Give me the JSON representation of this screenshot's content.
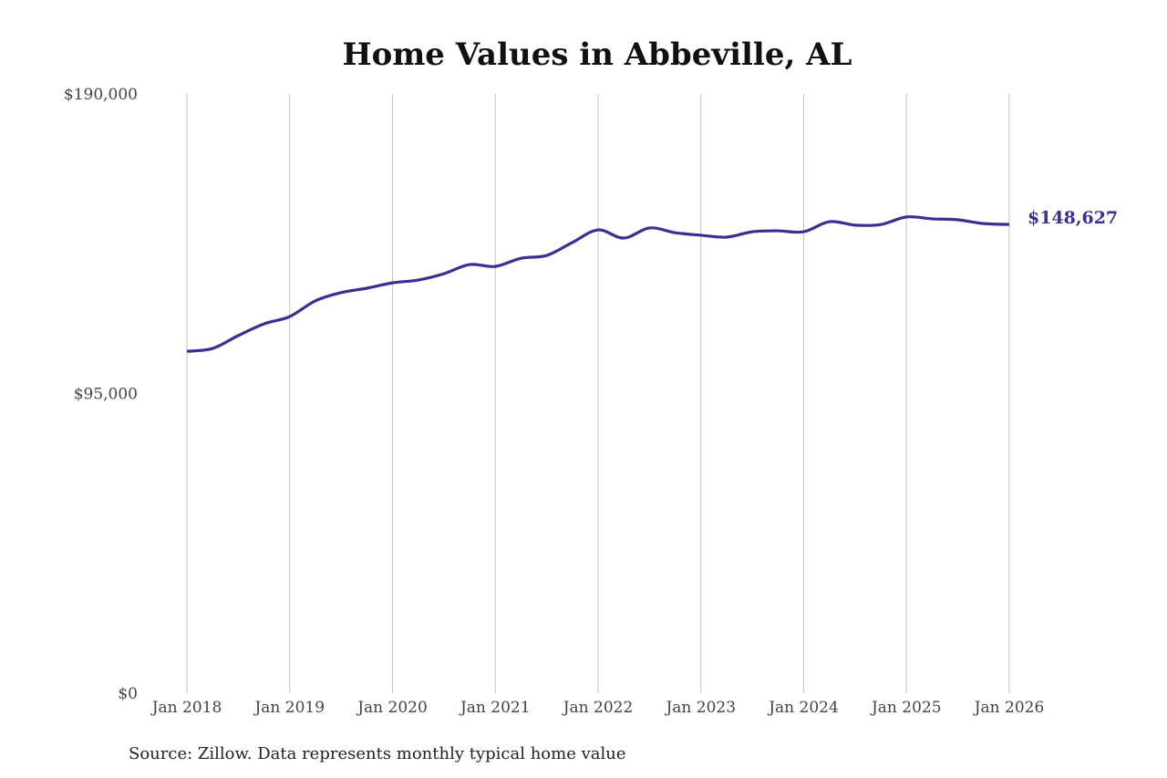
{
  "chart_data": {
    "type": "line",
    "title": "Home Values in Abbeville, AL",
    "source": "Source: Zillow. Data represents monthly typical home value",
    "xlabel": "",
    "ylabel": "",
    "ylim": [
      0,
      190000
    ],
    "xlim": [
      2018,
      2026
    ],
    "y_ticks": [
      0,
      95000,
      190000
    ],
    "y_tick_labels": [
      "$0",
      "$95,000",
      "$190,000"
    ],
    "x_ticks": [
      2018,
      2019,
      2020,
      2021,
      2022,
      2023,
      2024,
      2025,
      2026
    ],
    "x_tick_labels": [
      "Jan 2018",
      "Jan 2019",
      "Jan 2020",
      "Jan 2021",
      "Jan 2022",
      "Jan 2023",
      "Jan 2024",
      "Jan 2025",
      "Jan 2026"
    ],
    "grid": "vertical",
    "line_color": "#3a2f94",
    "end_label": "$148,627",
    "series": [
      {
        "name": "Typical home value",
        "x": [
          2018.0,
          2018.25,
          2018.5,
          2018.75,
          2019.0,
          2019.25,
          2019.5,
          2019.75,
          2020.0,
          2020.25,
          2020.5,
          2020.75,
          2021.0,
          2021.25,
          2021.5,
          2021.75,
          2022.0,
          2022.25,
          2022.5,
          2022.75,
          2023.0,
          2023.25,
          2023.5,
          2023.75,
          2024.0,
          2024.25,
          2024.5,
          2024.75,
          2025.0,
          2025.25,
          2025.5,
          2025.75,
          2026.0
        ],
        "values": [
          108400,
          109300,
          113400,
          117100,
          119400,
          124400,
          127000,
          128400,
          130100,
          131000,
          133000,
          135900,
          135300,
          137900,
          138800,
          142900,
          146900,
          144300,
          147500,
          146000,
          145200,
          144600,
          146300,
          146600,
          146300,
          149500,
          148400,
          148600,
          151000,
          150400,
          150100,
          148900,
          148627
        ]
      }
    ]
  }
}
